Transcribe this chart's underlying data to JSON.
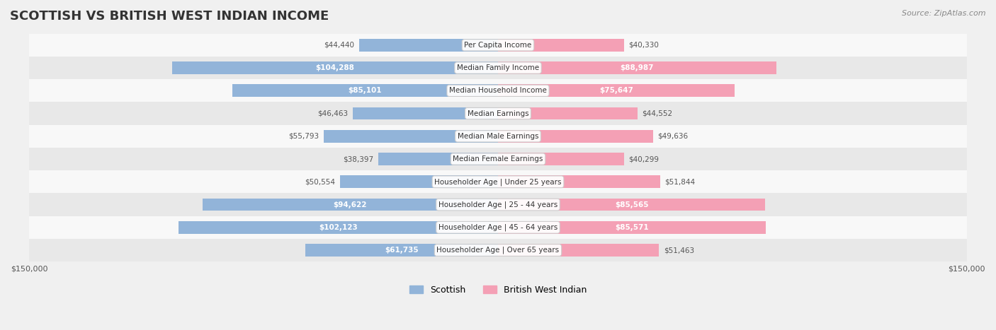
{
  "title": "SCOTTISH VS BRITISH WEST INDIAN INCOME",
  "source": "Source: ZipAtlas.com",
  "categories": [
    "Per Capita Income",
    "Median Family Income",
    "Median Household Income",
    "Median Earnings",
    "Median Male Earnings",
    "Median Female Earnings",
    "Householder Age | Under 25 years",
    "Householder Age | 25 - 44 years",
    "Householder Age | 45 - 64 years",
    "Householder Age | Over 65 years"
  ],
  "scottish_values": [
    44440,
    104288,
    85101,
    46463,
    55793,
    38397,
    50554,
    94622,
    102123,
    61735
  ],
  "bwi_values": [
    40330,
    88987,
    75647,
    44552,
    49636,
    40299,
    51844,
    85565,
    85571,
    51463
  ],
  "scottish_labels": [
    "$44,440",
    "$104,288",
    "$85,101",
    "$46,463",
    "$55,793",
    "$38,397",
    "$50,554",
    "$94,622",
    "$102,123",
    "$61,735"
  ],
  "bwi_labels": [
    "$40,330",
    "$88,987",
    "$75,647",
    "$44,552",
    "$49,636",
    "$40,299",
    "$51,844",
    "$85,565",
    "$85,571",
    "$51,463"
  ],
  "max_value": 150000,
  "scottish_color": "#92b4d9",
  "scottish_color_dark": "#6699cc",
  "bwi_color": "#f4a0b5",
  "bwi_color_dark": "#e8728f",
  "bg_color": "#f0f0f0",
  "row_bg_light": "#f8f8f8",
  "row_bg_dark": "#e8e8e8"
}
